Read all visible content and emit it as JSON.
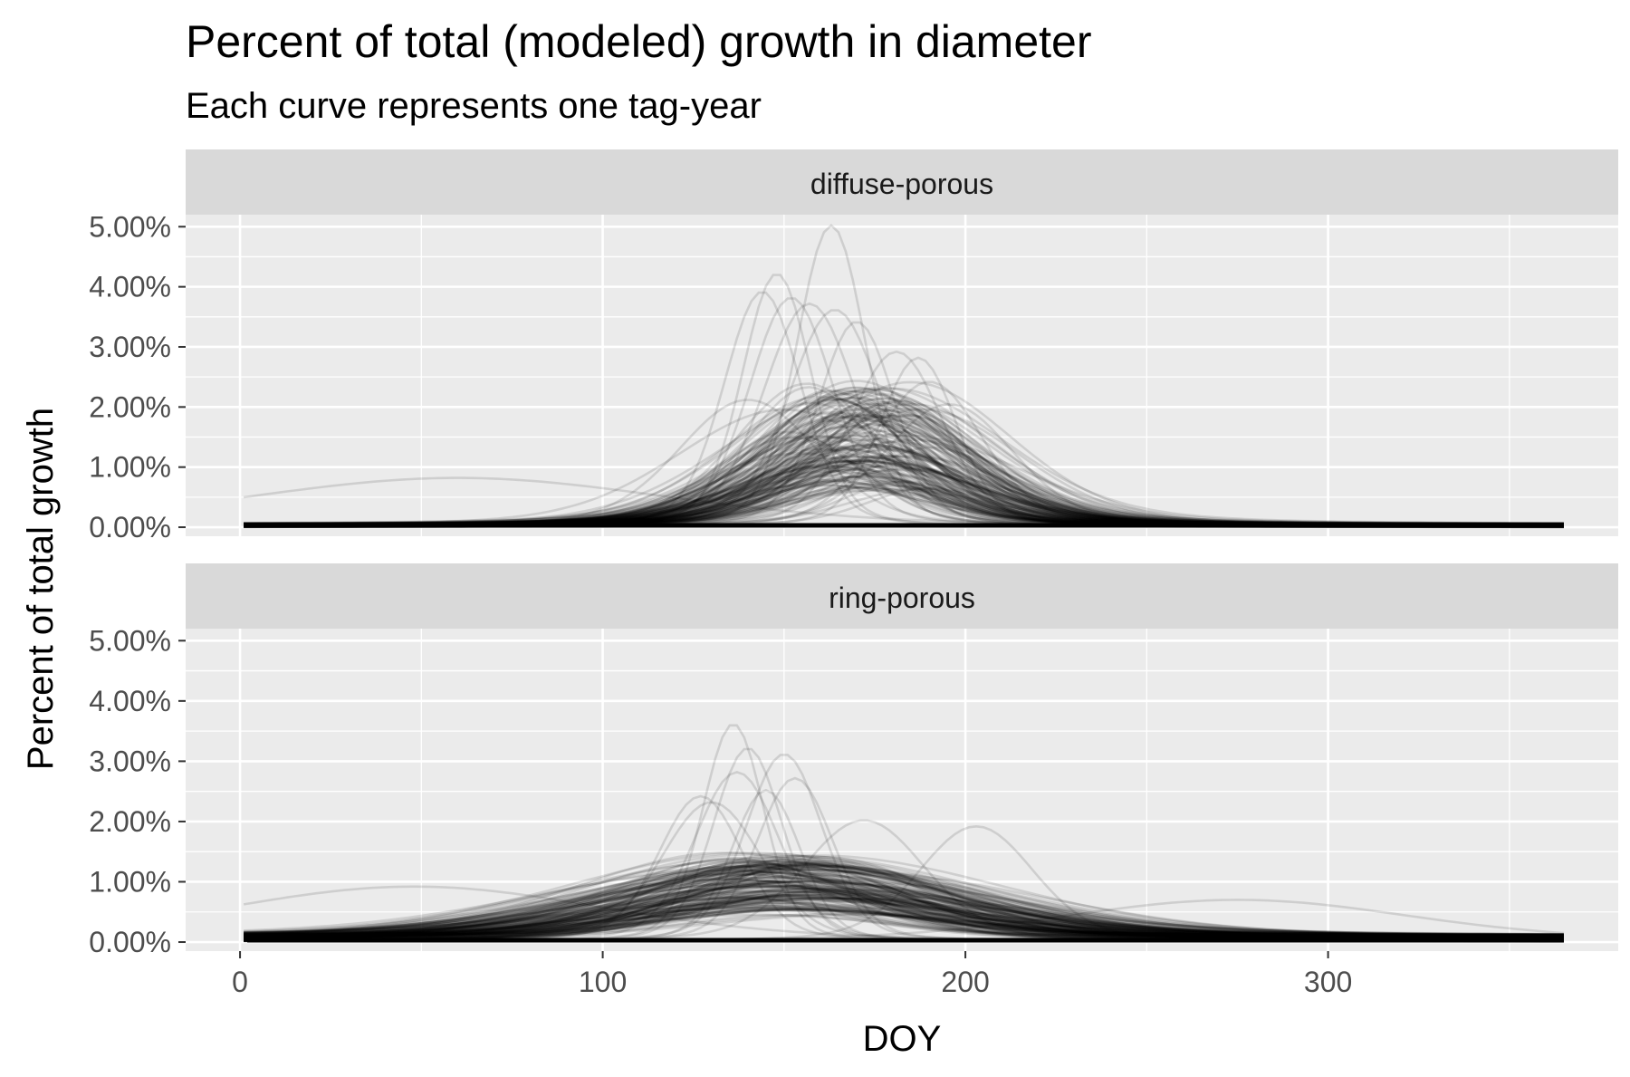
{
  "chart_data": {
    "type": "line",
    "title": "Percent of total (modeled) growth in diameter",
    "subtitle": "Each curve represents one tag-year",
    "xlabel": "DOY",
    "ylabel": "Percent of total growth",
    "xlim": [
      -15,
      380
    ],
    "ylim": [
      -0.0015,
      0.052
    ],
    "x_ticks": [
      0,
      100,
      200,
      300
    ],
    "x_tick_labels": [
      "0",
      "100",
      "200",
      "300"
    ],
    "y_ticks": [
      0,
      0.01,
      0.02,
      0.03,
      0.04,
      0.05
    ],
    "y_tick_labels": [
      "0.00%",
      "1.00%",
      "2.00%",
      "3.00%",
      "4.00%",
      "5.00%"
    ],
    "grid": true,
    "line_color": "#000000",
    "panel_background": "#EBEBEB",
    "strip_background": "#D9D9D9",
    "panels": [
      {
        "label": "diffuse-porous",
        "curves_note": "bulk of curves peak around DOY 150-200 at roughly 1-2%",
        "highlight_curves": [
          {
            "peak_doy": 163,
            "peak_value": 0.05,
            "width": 9
          },
          {
            "peak_doy": 148,
            "peak_value": 0.042,
            "width": 9
          },
          {
            "peak_doy": 144,
            "peak_value": 0.039,
            "width": 10
          },
          {
            "peak_doy": 152,
            "peak_value": 0.038,
            "width": 11
          },
          {
            "peak_doy": 157,
            "peak_value": 0.037,
            "width": 12
          },
          {
            "peak_doy": 170,
            "peak_value": 0.034,
            "width": 10
          },
          {
            "peak_doy": 164,
            "peak_value": 0.036,
            "width": 12
          },
          {
            "peak_doy": 181,
            "peak_value": 0.029,
            "width": 12
          },
          {
            "peak_doy": 187,
            "peak_value": 0.028,
            "width": 10
          },
          {
            "peak_doy": 140,
            "peak_value": 0.021,
            "width": 18
          },
          {
            "peak_doy": 60,
            "peak_value": 0.008,
            "width": 55
          },
          {
            "peak_doy": 190,
            "peak_value": 0.024,
            "width": 14
          }
        ]
      },
      {
        "label": "ring-porous",
        "curves_note": "bulk of curves peak around DOY 130-170 at roughly 0.5-1.5%",
        "highlight_curves": [
          {
            "peak_doy": 136,
            "peak_value": 0.036,
            "width": 8
          },
          {
            "peak_doy": 140,
            "peak_value": 0.032,
            "width": 9
          },
          {
            "peak_doy": 150,
            "peak_value": 0.031,
            "width": 10
          },
          {
            "peak_doy": 137,
            "peak_value": 0.028,
            "width": 11
          },
          {
            "peak_doy": 153,
            "peak_value": 0.027,
            "width": 10
          },
          {
            "peak_doy": 127,
            "peak_value": 0.024,
            "width": 11
          },
          {
            "peak_doy": 130,
            "peak_value": 0.023,
            "width": 13
          },
          {
            "peak_doy": 145,
            "peak_value": 0.025,
            "width": 9
          },
          {
            "peak_doy": 203,
            "peak_value": 0.019,
            "width": 15
          },
          {
            "peak_doy": 172,
            "peak_value": 0.02,
            "width": 16
          },
          {
            "peak_doy": 48,
            "peak_value": 0.009,
            "width": 50
          },
          {
            "peak_doy": 275,
            "peak_value": 0.0068,
            "width": 45
          }
        ]
      }
    ]
  }
}
